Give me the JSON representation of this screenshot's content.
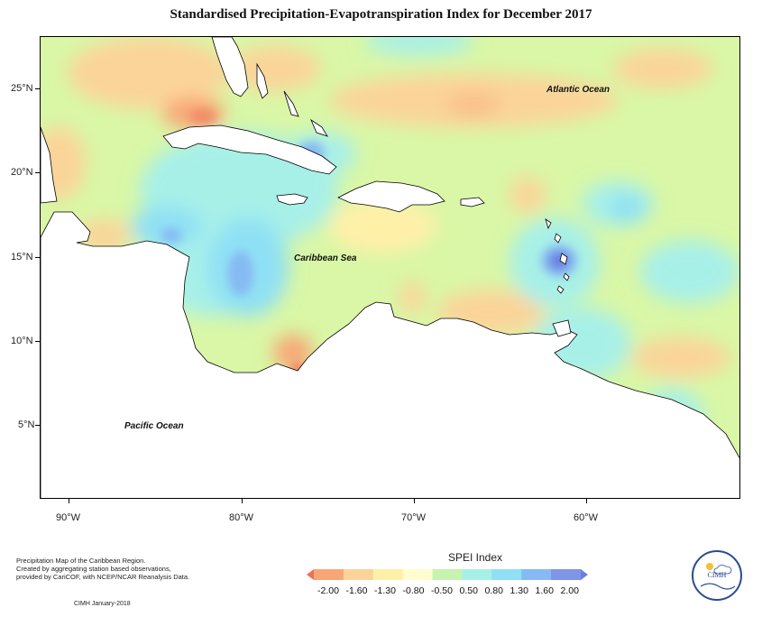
{
  "title": "Standardised Precipitation-Evapotranspiration Index for December 2017",
  "map": {
    "lat_labels": [
      "25°N",
      "20°N",
      "15°N",
      "10°N",
      "5°N"
    ],
    "lon_labels": [
      "90°W",
      "80°W",
      "70°W",
      "60°W"
    ],
    "ocean_labels": {
      "atlantic": "Atlantic Ocean",
      "caribbean": "Caribbean Sea",
      "pacific": "Pacific Ocean"
    },
    "colors": {
      "background_index": "#d9f7a6",
      "land": "#ffffff",
      "coast": "#000000"
    }
  },
  "legend": {
    "title": "SPEI Index",
    "ticks": [
      "-2.00",
      "-1.60",
      "-1.30",
      "-0.80",
      "-0.50",
      "0.50",
      "0.80",
      "1.30",
      "1.60",
      "2.00"
    ],
    "colors": [
      "#f07058",
      "#f9a676",
      "#fbd49a",
      "#fff0a8",
      "#fffccf",
      "#c6f3b0",
      "#a7f0e8",
      "#8fe0f5",
      "#86baf2",
      "#7f95e5",
      "#6a7ee0"
    ]
  },
  "credit": {
    "lines": [
      "Precipitation Map of the Caribbean Region.",
      "Created by aggregating station based observations,",
      "provided by CariCOF, with NCEP/NCAR Reanalysis Data."
    ],
    "date": "CIMH January-2018"
  },
  "logo": {
    "text": "CIMH"
  }
}
